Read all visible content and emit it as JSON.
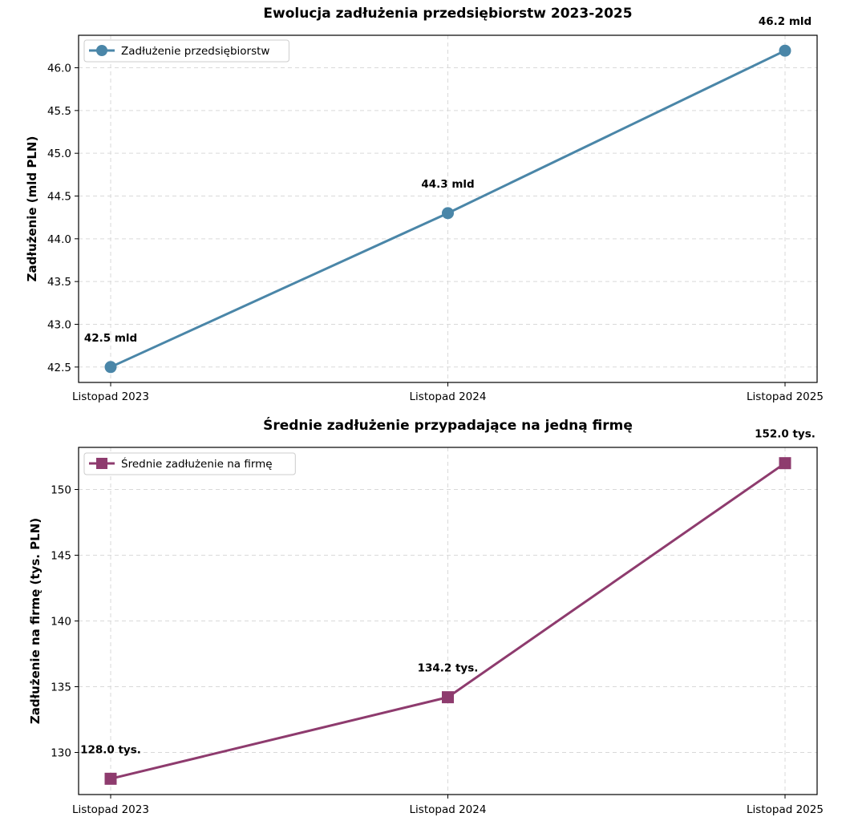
{
  "chart_data": [
    {
      "type": "line",
      "title": "Ewolucja zadłużenia przedsiębiorstw 2023-2025",
      "xlabel": "",
      "ylabel": "Zadłużenie (mld PLN)",
      "categories": [
        "Listopad 2023",
        "Listopad 2024",
        "Listopad 2025"
      ],
      "series": [
        {
          "name": "Zadłużenie przedsiębiorstw",
          "values": [
            42.5,
            44.3,
            46.2
          ],
          "color": "#4a86a8",
          "marker": "circle",
          "labels": [
            "42.5 mld",
            "44.3 mld",
            "46.2 mld"
          ]
        }
      ],
      "ylim": [
        42.32,
        46.38
      ],
      "yticks": [
        42.5,
        43.0,
        43.5,
        44.0,
        44.5,
        45.0,
        45.5,
        46.0
      ],
      "ytick_labels": [
        "42.5",
        "43.0",
        "43.5",
        "44.0",
        "44.5",
        "45.0",
        "45.5",
        "46.0"
      ],
      "grid": true,
      "legend_position": "top-left"
    },
    {
      "type": "line",
      "title": "Średnie zadłużenie przypadające na jedną firmę",
      "xlabel": "",
      "ylabel": "Zadłużenie na firmę (tys. PLN)",
      "categories": [
        "Listopad 2023",
        "Listopad 2024",
        "Listopad 2025"
      ],
      "series": [
        {
          "name": "Średnie zadłużenie na firmę",
          "values": [
            128.0,
            134.2,
            152.0
          ],
          "color": "#8e3b6e",
          "marker": "square",
          "labels": [
            "128.0 tys.",
            "134.2 tys.",
            "152.0 tys."
          ]
        }
      ],
      "ylim": [
        126.8,
        153.2
      ],
      "yticks": [
        130,
        135,
        140,
        145,
        150
      ],
      "ytick_labels": [
        "130",
        "135",
        "140",
        "145",
        "150"
      ],
      "grid": true,
      "legend_position": "top-left"
    }
  ]
}
